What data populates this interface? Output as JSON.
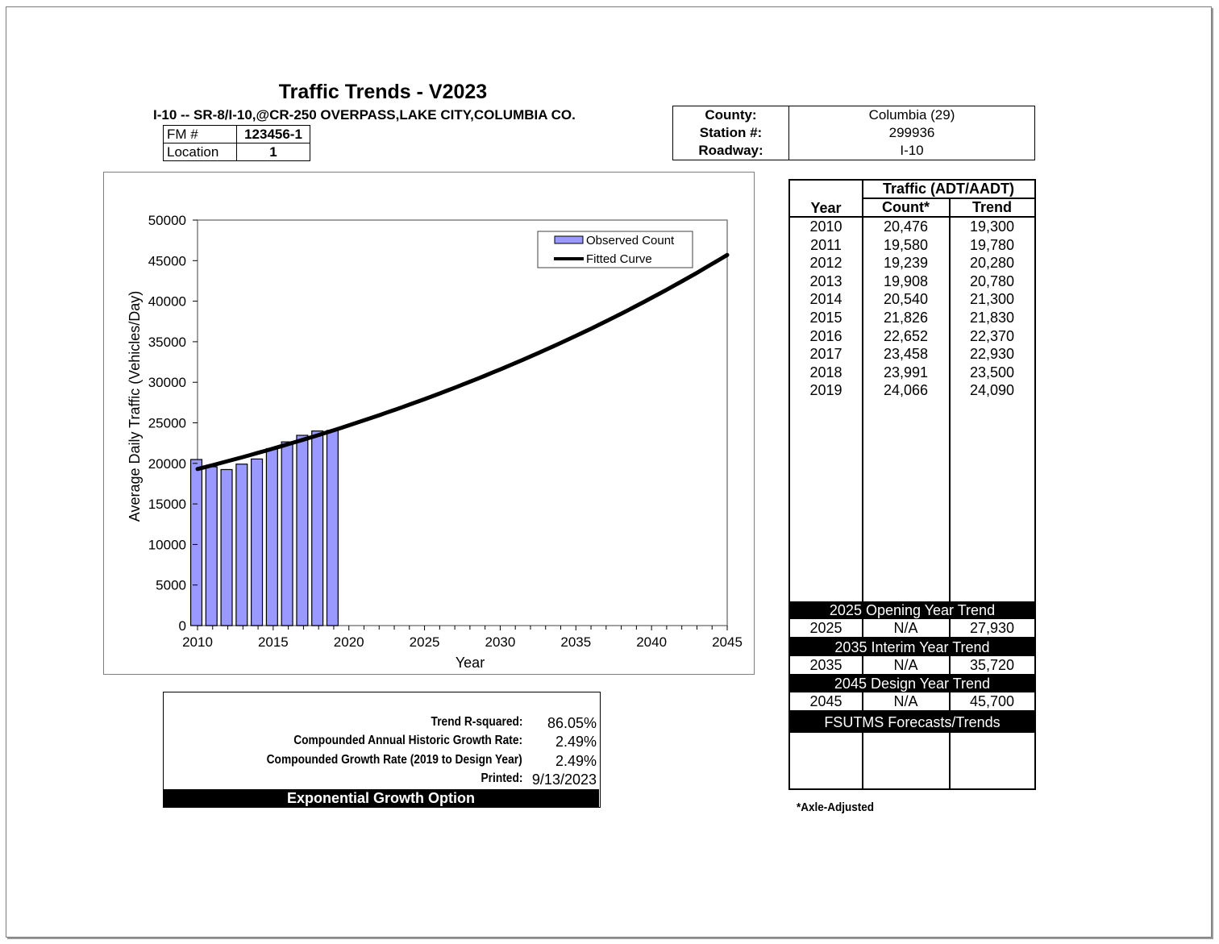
{
  "header": {
    "title": "Traffic Trends - V2023",
    "subtitle": "I-10 -- SR-8/I-10,@CR-250 OVERPASS,LAKE CITY,COLUMBIA CO.",
    "fm_label": "FM #",
    "fm_value": "123456-1",
    "location_label": "Location",
    "location_value": "1"
  },
  "info": {
    "county_label": "County:",
    "county_value": "Columbia (29)",
    "station_label": "Station #:",
    "station_value": "299936",
    "roadway_label": "Roadway:",
    "roadway_value": "I-10"
  },
  "chart_data": {
    "type": "bar",
    "xlabel": "Year",
    "ylabel": "Average Daily Traffic (Vehicles/Day)",
    "xlim": [
      2010,
      2045
    ],
    "ylim": [
      0,
      50000
    ],
    "x_ticks": [
      "2010",
      "2015",
      "2020",
      "2025",
      "2030",
      "2035",
      "2040",
      "2045"
    ],
    "y_ticks": [
      "0",
      "5000",
      "10000",
      "15000",
      "20000",
      "25000",
      "30000",
      "35000",
      "40000",
      "45000",
      "50000"
    ],
    "legend": [
      "Observed Count",
      "Fitted Curve"
    ],
    "legend_position": "top-right",
    "bar_color": "#9999ff",
    "series": [
      {
        "name": "Observed Count",
        "type": "bar",
        "x": [
          2010,
          2011,
          2012,
          2013,
          2014,
          2015,
          2016,
          2017,
          2018,
          2019
        ],
        "values": [
          20476,
          19580,
          19239,
          19908,
          20540,
          21826,
          22652,
          23458,
          23991,
          24066
        ]
      },
      {
        "name": "Fitted Curve",
        "type": "line",
        "x": [
          2010,
          2015,
          2019,
          2025,
          2035,
          2045
        ],
        "values": [
          19300,
          21830,
          24090,
          27930,
          35720,
          45700
        ]
      }
    ]
  },
  "stats": {
    "r2_label": "Trend R-squared:",
    "r2_value": "86.05%",
    "hist_label": "Compounded Annual Historic Growth Rate:",
    "hist_value": "2.49%",
    "design_label": "Compounded Growth Rate (2019 to Design Year)",
    "design_value": "2.49%",
    "printed_label": "Printed:",
    "printed_value": "9/13/2023",
    "footer": "Exponential Growth Option"
  },
  "traffic": {
    "group_header": "Traffic (ADT/AADT)",
    "col_year": "Year",
    "col_count": "Count*",
    "col_trend": "Trend",
    "rows": [
      {
        "year": "2010",
        "count": "20,476",
        "trend": "19,300"
      },
      {
        "year": "2011",
        "count": "19,580",
        "trend": "19,780"
      },
      {
        "year": "2012",
        "count": "19,239",
        "trend": "20,280"
      },
      {
        "year": "2013",
        "count": "19,908",
        "trend": "20,780"
      },
      {
        "year": "2014",
        "count": "20,540",
        "trend": "21,300"
      },
      {
        "year": "2015",
        "count": "21,826",
        "trend": "21,830"
      },
      {
        "year": "2016",
        "count": "22,652",
        "trend": "22,370"
      },
      {
        "year": "2017",
        "count": "23,458",
        "trend": "22,930"
      },
      {
        "year": "2018",
        "count": "23,991",
        "trend": "23,500"
      },
      {
        "year": "2019",
        "count": "24,066",
        "trend": "24,090"
      }
    ],
    "opening_header": "2025 Opening Year Trend",
    "opening": {
      "year": "2025",
      "count": "N/A",
      "trend": "27,930"
    },
    "interim_header": "2035 Interim Year Trend",
    "interim": {
      "year": "2035",
      "count": "N/A",
      "trend": "35,720"
    },
    "design_header": "2045 Design Year Trend",
    "design": {
      "year": "2045",
      "count": "N/A",
      "trend": "45,700"
    },
    "fsutms_header": "FSUTMS Forecasts/Trends",
    "note": "*Axle-Adjusted"
  }
}
